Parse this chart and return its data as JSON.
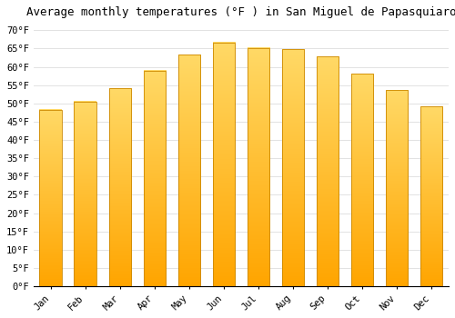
{
  "title": "Average monthly temperatures (°F ) in San Miguel de Papasquiaro",
  "months": [
    "Jan",
    "Feb",
    "Mar",
    "Apr",
    "May",
    "Jun",
    "Jul",
    "Aug",
    "Sep",
    "Oct",
    "Nov",
    "Dec"
  ],
  "values": [
    48.2,
    50.5,
    54.1,
    59.0,
    63.3,
    66.7,
    65.1,
    64.8,
    62.8,
    58.1,
    53.6,
    49.1
  ],
  "bar_color_top": "#FFD966",
  "bar_color_bottom": "#FFA500",
  "bar_edge_color": "#CC8800",
  "background_color": "#ffffff",
  "grid_color": "#dddddd",
  "ylim": [
    0,
    72
  ],
  "yticks": [
    0,
    5,
    10,
    15,
    20,
    25,
    30,
    35,
    40,
    45,
    50,
    55,
    60,
    65,
    70
  ],
  "title_fontsize": 9,
  "tick_fontsize": 7.5,
  "font_family": "monospace",
  "bar_width": 0.65
}
